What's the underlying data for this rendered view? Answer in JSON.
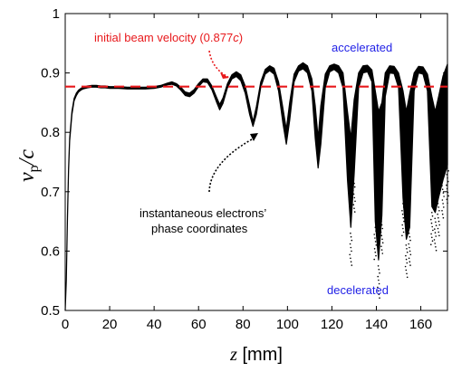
{
  "chart_data": {
    "type": "scatter",
    "title": "",
    "xlabel": "z [mm]",
    "xlabel_var": "z",
    "xlabel_unit": "[mm]",
    "ylabel": "v_p/c",
    "ylabel_var": "v",
    "ylabel_sub": "p",
    "ylabel_rest": "/c",
    "xlim": [
      0,
      172
    ],
    "ylim": [
      0.5,
      1.0
    ],
    "xticks": [
      0,
      20,
      40,
      60,
      80,
      100,
      120,
      140,
      160
    ],
    "yticks": [
      0.5,
      0.6,
      0.7,
      0.8,
      0.9,
      1.0
    ],
    "ytick_labels": [
      "0.5",
      "0.6",
      "0.7",
      "0.8",
      "0.9",
      "1"
    ],
    "grid": false,
    "reference_line": {
      "value": 0.877,
      "style": "dashed",
      "color": "#e8191c"
    },
    "series": [
      {
        "color": "#000000",
        "upper_envelope": [
          [
            0,
            0.45
          ],
          [
            0.5,
            0.55
          ],
          [
            1,
            0.66
          ],
          [
            1.5,
            0.74
          ],
          [
            2,
            0.79
          ],
          [
            3,
            0.835
          ],
          [
            4,
            0.857
          ],
          [
            5,
            0.866
          ],
          [
            6,
            0.871
          ],
          [
            7,
            0.874
          ],
          [
            8,
            0.876
          ],
          [
            9,
            0.877
          ],
          [
            10,
            0.878
          ],
          [
            12,
            0.879
          ],
          [
            14,
            0.879
          ],
          [
            16,
            0.878
          ],
          [
            18,
            0.878
          ],
          [
            20,
            0.877
          ],
          [
            24,
            0.877
          ],
          [
            28,
            0.876
          ],
          [
            32,
            0.876
          ],
          [
            36,
            0.876
          ],
          [
            40,
            0.877
          ],
          [
            43,
            0.879
          ],
          [
            46,
            0.883
          ],
          [
            48,
            0.885
          ],
          [
            50,
            0.882
          ],
          [
            52,
            0.876
          ],
          [
            54,
            0.868
          ],
          [
            56,
            0.866
          ],
          [
            58,
            0.872
          ],
          [
            60,
            0.882
          ],
          [
            62,
            0.89
          ],
          [
            64,
            0.89
          ],
          [
            66,
            0.878
          ],
          [
            68,
            0.86
          ],
          [
            69.5,
            0.847
          ],
          [
            71,
            0.858
          ],
          [
            73,
            0.882
          ],
          [
            75,
            0.897
          ],
          [
            77,
            0.902
          ],
          [
            79,
            0.897
          ],
          [
            81,
            0.878
          ],
          [
            83,
            0.845
          ],
          [
            84.5,
            0.818
          ],
          [
            86,
            0.843
          ],
          [
            88,
            0.885
          ],
          [
            90,
            0.906
          ],
          [
            92,
            0.912
          ],
          [
            94,
            0.908
          ],
          [
            96,
            0.885
          ],
          [
            98,
            0.84
          ],
          [
            99.5,
            0.805
          ],
          [
            101,
            0.85
          ],
          [
            103,
            0.898
          ],
          [
            105,
            0.912
          ],
          [
            107,
            0.917
          ],
          [
            109,
            0.912
          ],
          [
            111,
            0.89
          ],
          [
            112.5,
            0.845
          ],
          [
            113.8,
            0.79
          ],
          [
            115,
            0.845
          ],
          [
            117,
            0.898
          ],
          [
            119,
            0.912
          ],
          [
            121,
            0.915
          ],
          [
            123,
            0.912
          ],
          [
            125,
            0.9
          ],
          [
            127,
            0.835
          ],
          [
            128.5,
            0.79
          ],
          [
            130,
            0.855
          ],
          [
            132,
            0.9
          ],
          [
            134,
            0.912
          ],
          [
            136,
            0.913
          ],
          [
            138,
            0.905
          ],
          [
            139.5,
            0.87
          ],
          [
            141,
            0.835
          ],
          [
            142.5,
            0.85
          ],
          [
            144,
            0.9
          ],
          [
            146,
            0.912
          ],
          [
            148,
            0.911
          ],
          [
            150,
            0.9
          ],
          [
            152,
            0.87
          ],
          [
            153.5,
            0.835
          ],
          [
            155,
            0.865
          ],
          [
            157,
            0.9
          ],
          [
            159,
            0.911
          ],
          [
            161,
            0.91
          ],
          [
            163,
            0.898
          ],
          [
            165,
            0.86
          ],
          [
            166.5,
            0.835
          ],
          [
            168,
            0.86
          ],
          [
            170,
            0.895
          ],
          [
            172,
            0.915
          ]
        ],
        "lower_envelope": [
          [
            0,
            0.45
          ],
          [
            0.5,
            0.55
          ],
          [
            1,
            0.655
          ],
          [
            1.5,
            0.735
          ],
          [
            2,
            0.785
          ],
          [
            3,
            0.83
          ],
          [
            4,
            0.853
          ],
          [
            5,
            0.862
          ],
          [
            6,
            0.868
          ],
          [
            7,
            0.871
          ],
          [
            8,
            0.873
          ],
          [
            9,
            0.874
          ],
          [
            10,
            0.875
          ],
          [
            12,
            0.876
          ],
          [
            14,
            0.876
          ],
          [
            16,
            0.875
          ],
          [
            18,
            0.875
          ],
          [
            20,
            0.874
          ],
          [
            24,
            0.874
          ],
          [
            28,
            0.873
          ],
          [
            32,
            0.873
          ],
          [
            36,
            0.873
          ],
          [
            40,
            0.874
          ],
          [
            43,
            0.876
          ],
          [
            46,
            0.88
          ],
          [
            48,
            0.881
          ],
          [
            50,
            0.878
          ],
          [
            52,
            0.871
          ],
          [
            54,
            0.862
          ],
          [
            56,
            0.86
          ],
          [
            58,
            0.866
          ],
          [
            60,
            0.877
          ],
          [
            62,
            0.885
          ],
          [
            64,
            0.884
          ],
          [
            66,
            0.872
          ],
          [
            68,
            0.852
          ],
          [
            69.5,
            0.838
          ],
          [
            71,
            0.849
          ],
          [
            73,
            0.875
          ],
          [
            75,
            0.89
          ],
          [
            77,
            0.894
          ],
          [
            79,
            0.887
          ],
          [
            81,
            0.866
          ],
          [
            83,
            0.83
          ],
          [
            84.5,
            0.81
          ],
          [
            86,
            0.83
          ],
          [
            88,
            0.876
          ],
          [
            90,
            0.898
          ],
          [
            92,
            0.904
          ],
          [
            94,
            0.898
          ],
          [
            96,
            0.87
          ],
          [
            98,
            0.815
          ],
          [
            99.5,
            0.78
          ],
          [
            101,
            0.82
          ],
          [
            103,
            0.885
          ],
          [
            105,
            0.903
          ],
          [
            107,
            0.907
          ],
          [
            109,
            0.9
          ],
          [
            111,
            0.87
          ],
          [
            112.5,
            0.79
          ],
          [
            113.8,
            0.74
          ],
          [
            115,
            0.78
          ],
          [
            117,
            0.875
          ],
          [
            119,
            0.902
          ],
          [
            121,
            0.906
          ],
          [
            123,
            0.9
          ],
          [
            125,
            0.875
          ],
          [
            127,
            0.72
          ],
          [
            128.5,
            0.64
          ],
          [
            130,
            0.73
          ],
          [
            132,
            0.875
          ],
          [
            134,
            0.9
          ],
          [
            136,
            0.902
          ],
          [
            138,
            0.885
          ],
          [
            139.5,
            0.65
          ],
          [
            141,
            0.585
          ],
          [
            142.5,
            0.66
          ],
          [
            144,
            0.86
          ],
          [
            146,
            0.9
          ],
          [
            148,
            0.899
          ],
          [
            150,
            0.875
          ],
          [
            152,
            0.69
          ],
          [
            153.5,
            0.62
          ],
          [
            155,
            0.64
          ],
          [
            157,
            0.87
          ],
          [
            159,
            0.9
          ],
          [
            161,
            0.898
          ],
          [
            163,
            0.87
          ],
          [
            165,
            0.675
          ],
          [
            166.5,
            0.665
          ],
          [
            168,
            0.69
          ],
          [
            170,
            0.72
          ],
          [
            172,
            0.745
          ]
        ]
      }
    ],
    "annotations": [
      {
        "text": "initial beam velocity (0.877",
        "text_var": "c",
        "text_end": ")",
        "color": "#e8191c",
        "points_to": [
          70,
          0.873
        ]
      },
      {
        "text": "accelerated",
        "color": "#1f1fe6"
      },
      {
        "text": "instantaneous electrons’",
        "text2": "phase coordinates",
        "color": "#000000",
        "points_to": [
          85,
          0.82
        ]
      },
      {
        "text": "decelerated",
        "color": "#1f1fe6"
      }
    ]
  }
}
